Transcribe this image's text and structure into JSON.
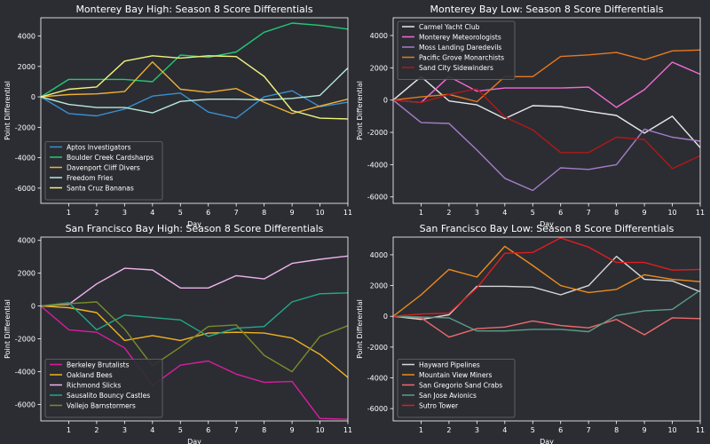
{
  "colors": {
    "figure_bg": "#2b2d33",
    "axes_bg": "#2b2d33",
    "axis": "#ffffff",
    "text": "#ffffff",
    "legend_bg": "#2b2d33",
    "legend_border": "#6b6d72"
  },
  "chart_data": [
    {
      "type": "line",
      "title": "Monterey Bay High: Season 8 Score Differentials",
      "xlabel": "Day",
      "ylabel": "Point Differential",
      "xlim": [
        0,
        11
      ],
      "ylim": [
        -7000,
        5200
      ],
      "xticks": [
        1,
        2,
        3,
        4,
        5,
        6,
        7,
        8,
        9,
        10,
        11
      ],
      "yticks": [
        -6000,
        -4000,
        -2000,
        0,
        2000,
        4000
      ],
      "legend_loc": "lower-left",
      "x": [
        0,
        1,
        2,
        3,
        4,
        5,
        6,
        7,
        8,
        9,
        10,
        11
      ],
      "series": [
        {
          "name": "Aptos Investigators",
          "color": "#3a8fd0",
          "values": [
            0,
            -1100,
            -1250,
            -800,
            50,
            250,
            -1000,
            -1400,
            0,
            400,
            -650,
            -350
          ]
        },
        {
          "name": "Boulder Creek Cardsharps",
          "color": "#22c873",
          "values": [
            0,
            1150,
            1150,
            1150,
            1000,
            2750,
            2600,
            2950,
            4250,
            4850,
            4700,
            4450
          ]
        },
        {
          "name": "Davenport Cliff Divers",
          "color": "#f0b030",
          "values": [
            0,
            150,
            200,
            350,
            2300,
            500,
            300,
            550,
            -350,
            -1100,
            -600,
            -150
          ]
        },
        {
          "name": "Freedom Fries",
          "color": "#b9e8d8",
          "values": [
            0,
            -500,
            -700,
            -700,
            -1050,
            -300,
            -150,
            -150,
            -200,
            -100,
            100,
            1900
          ]
        },
        {
          "name": "Santa Cruz Bananas",
          "color": "#f2f27a",
          "values": [
            0,
            500,
            650,
            2350,
            2700,
            2550,
            2700,
            2650,
            1350,
            -900,
            -1400,
            -1450
          ]
        }
      ]
    },
    {
      "type": "line",
      "title": "Monterey Bay Low: Season 8 Score Differentials",
      "xlabel": "Day",
      "ylabel": "Point Differential",
      "xlim": [
        0,
        11
      ],
      "ylim": [
        -6400,
        5100
      ],
      "xticks": [
        1,
        2,
        3,
        4,
        5,
        6,
        7,
        8,
        9,
        10,
        11
      ],
      "yticks": [
        -6000,
        -4000,
        -2000,
        0,
        2000,
        4000
      ],
      "legend_loc": "upper-left",
      "x": [
        0,
        1,
        2,
        3,
        4,
        5,
        6,
        7,
        8,
        9,
        10,
        11
      ],
      "series": [
        {
          "name": "Carmel Yacht Club",
          "color": "#e8e8e8",
          "values": [
            0,
            1450,
            -50,
            -300,
            -1150,
            -350,
            -400,
            -700,
            -950,
            -2050,
            -1000,
            -2950
          ]
        },
        {
          "name": "Monterey Meteorologists",
          "color": "#f46ad2",
          "values": [
            0,
            -150,
            1450,
            550,
            750,
            750,
            750,
            800,
            -450,
            650,
            2350,
            1600
          ]
        },
        {
          "name": "Moss Landing Daredevils",
          "color": "#a77dc8",
          "values": [
            0,
            -1400,
            -1450,
            -3100,
            -4850,
            -5600,
            -4200,
            -4300,
            -4000,
            -1800,
            -2300,
            -2550
          ]
        },
        {
          "name": "Pacific Grove Monarchists",
          "color": "#e8781e",
          "values": [
            0,
            200,
            350,
            -100,
            1450,
            1450,
            2700,
            2800,
            2950,
            2500,
            3050,
            3100
          ]
        },
        {
          "name": "Sand City Sidewinders",
          "color": "#b21818",
          "values": [
            0,
            -150,
            350,
            700,
            -1050,
            -1850,
            -3250,
            -3250,
            -2300,
            -2450,
            -4250,
            -3450
          ]
        }
      ]
    },
    {
      "type": "line",
      "title": "San Francisco Bay High: Season 8 Score Differentials",
      "xlabel": "Day",
      "ylabel": "Point Differential",
      "xlim": [
        0,
        11
      ],
      "ylim": [
        -7000,
        4200
      ],
      "xticks": [
        1,
        2,
        3,
        4,
        5,
        6,
        7,
        8,
        9,
        10,
        11
      ],
      "yticks": [
        -6000,
        -4000,
        -2000,
        0,
        2000,
        4000
      ],
      "legend_loc": "lower-left",
      "x": [
        0,
        1,
        2,
        3,
        4,
        5,
        6,
        7,
        8,
        9,
        10,
        11
      ],
      "series": [
        {
          "name": "Berkeley Brutalists",
          "color": "#d81e9e",
          "values": [
            0,
            -1450,
            -1600,
            -2550,
            -4850,
            -3600,
            -3350,
            -4150,
            -4650,
            -4600,
            -6850,
            -6900
          ]
        },
        {
          "name": "Oakland Bees",
          "color": "#f2b21f",
          "values": [
            0,
            -100,
            -400,
            -2100,
            -1800,
            -2100,
            -1650,
            -1600,
            -1650,
            -1950,
            -2950,
            -4350
          ]
        },
        {
          "name": "Richmond Slicks",
          "color": "#f0b3ec",
          "values": [
            0,
            100,
            1350,
            2300,
            2200,
            1100,
            1100,
            1850,
            1650,
            2600,
            2850,
            3050
          ]
        },
        {
          "name": "Sausalito Bouncy Castles",
          "color": "#23a889",
          "values": [
            0,
            200,
            -1450,
            -550,
            -700,
            -850,
            -1850,
            -1350,
            -1250,
            250,
            750,
            800
          ]
        },
        {
          "name": "Vallejo Barnstormers",
          "color": "#7a8c2a",
          "values": [
            0,
            150,
            250,
            -1400,
            -3650,
            -2500,
            -1250,
            -1150,
            -3000,
            -4000,
            -1850,
            -1200
          ]
        }
      ]
    },
    {
      "type": "line",
      "title": "San Francisco Bay Low: Season 8 Score Differentials",
      "xlabel": "Day",
      "ylabel": "Point Differential",
      "xlim": [
        0,
        11
      ],
      "ylim": [
        -6800,
        5150
      ],
      "xticks": [
        1,
        2,
        3,
        4,
        5,
        6,
        7,
        8,
        9,
        10,
        11
      ],
      "yticks": [
        -6000,
        -4000,
        -2000,
        0,
        2000,
        4000
      ],
      "legend_loc": "lower-left",
      "x": [
        0,
        1,
        2,
        3,
        4,
        5,
        6,
        7,
        8,
        9,
        10,
        11
      ],
      "series": [
        {
          "name": "Hayward Pipelines",
          "color": "#d8d8d8",
          "values": [
            0,
            -200,
            100,
            1950,
            1950,
            1900,
            1400,
            2000,
            3900,
            2400,
            2300,
            1600
          ]
        },
        {
          "name": "Mountain View Miners",
          "color": "#ee8c1a",
          "values": [
            0,
            1400,
            3050,
            2550,
            4550,
            3300,
            2000,
            1550,
            1750,
            2700,
            2400,
            2250
          ]
        },
        {
          "name": "San Gregorio Sand Crabs",
          "color": "#ee6a6a",
          "values": [
            0,
            -100,
            -1350,
            -800,
            -700,
            -300,
            -600,
            -750,
            -200,
            -1200,
            -100,
            -150
          ]
        },
        {
          "name": "San Jose Avionics",
          "color": "#5d9e86",
          "values": [
            0,
            -50,
            -100,
            -950,
            -950,
            -850,
            -850,
            -1000,
            50,
            350,
            450,
            1700
          ]
        },
        {
          "name": "Sutro Tower",
          "color": "#e01e1e",
          "values": [
            0,
            150,
            200,
            1850,
            4100,
            4150,
            5100,
            4500,
            3500,
            3500,
            3000,
            3050
          ]
        }
      ]
    }
  ]
}
